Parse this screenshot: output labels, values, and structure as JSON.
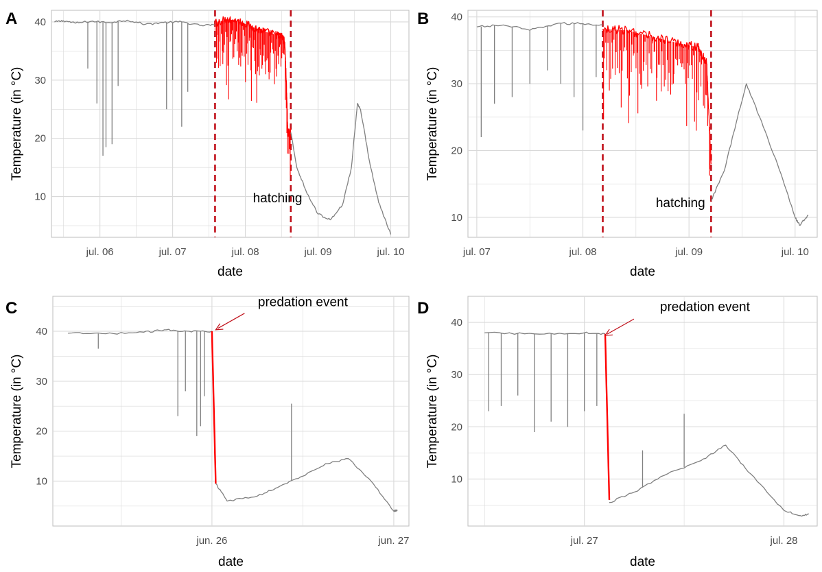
{
  "colors": {
    "series": "#808080",
    "highlight": "#ff0000",
    "event_line": "#c0101a",
    "grid": "#d9d9d9",
    "panel_border": "#bdbdbd"
  },
  "chart_data": [
    {
      "panel": "A",
      "type": "line",
      "xlabel": "date",
      "ylabel": "Temperature (in °C)",
      "x_axis_type": "date",
      "xlim": [
        "2021-07-05 08:00",
        "2021-07-10 06:00"
      ],
      "ylim": [
        3,
        42
      ],
      "x_ticks": [
        {
          "date": "2021-07-06",
          "label": "jul. 06"
        },
        {
          "date": "2021-07-07",
          "label": "jul. 07"
        },
        {
          "date": "2021-07-08",
          "label": "jul. 08"
        },
        {
          "date": "2021-07-09",
          "label": "jul. 09"
        },
        {
          "date": "2021-07-10",
          "label": "jul. 10"
        }
      ],
      "y_ticks": [
        10,
        20,
        30,
        40
      ],
      "grid": true,
      "vlines": [
        {
          "date": "2021-07-07 14:00",
          "style": "dashed"
        },
        {
          "date": "2021-07-08 15:00",
          "style": "dashed"
        }
      ],
      "annotation": {
        "text": "hatching",
        "date": "2021-07-08 02:30",
        "y": 9
      },
      "series": [
        {
          "role": "baseline",
          "color": "series",
          "points": [
            [
              "2021-07-05 09:00",
              40.0
            ],
            [
              "2021-07-05 12:00",
              40.2
            ],
            [
              "2021-07-05 16:00",
              39.8
            ],
            [
              "2021-07-05 21:00",
              40.1
            ],
            [
              "2021-07-06 03:00",
              39.9
            ],
            [
              "2021-07-06 09:00",
              40.3
            ],
            [
              "2021-07-06 15:00",
              39.6
            ],
            [
              "2021-07-06 21:00",
              39.9
            ],
            [
              "2021-07-07 03:00",
              40.0
            ],
            [
              "2021-07-07 09:00",
              39.4
            ],
            [
              "2021-07-07 14:00",
              39.5
            ]
          ]
        },
        {
          "role": "hatching",
          "color": "highlight",
          "points": [
            [
              "2021-07-07 14:00",
              39.8
            ],
            [
              "2021-07-07 18:00",
              40.5
            ],
            [
              "2021-07-07 22:00",
              40.1
            ],
            [
              "2021-07-08 02:00",
              39.2
            ],
            [
              "2021-07-08 06:00",
              38.4
            ],
            [
              "2021-07-08 10:00",
              37.8
            ],
            [
              "2021-07-08 12:00",
              37.5
            ],
            [
              "2021-07-08 13:00",
              36.5
            ],
            [
              "2021-07-08 13:30",
              30.0
            ],
            [
              "2021-07-08 14:00",
              21.0
            ],
            [
              "2021-07-08 15:00",
              21.0
            ]
          ]
        },
        {
          "role": "after",
          "color": "series",
          "points": [
            [
              "2021-07-08 15:00",
              21.0
            ],
            [
              "2021-07-08 17:00",
              15.0
            ],
            [
              "2021-07-08 20:00",
              11.0
            ],
            [
              "2021-07-09 00:00",
              7.0
            ],
            [
              "2021-07-09 04:00",
              6.0
            ],
            [
              "2021-07-09 08:00",
              8.5
            ],
            [
              "2021-07-09 11:00",
              15.0
            ],
            [
              "2021-07-09 13:00",
              26.0
            ],
            [
              "2021-07-09 14:00",
              25.0
            ],
            [
              "2021-07-09 17:00",
              16.0
            ],
            [
              "2021-07-09 20:00",
              9.0
            ],
            [
              "2021-07-10 00:00",
              3.5
            ]
          ]
        }
      ],
      "dips": [
        {
          "date": "2021-07-05 20:00",
          "min": 32
        },
        {
          "date": "2021-07-05 23:00",
          "min": 26
        },
        {
          "date": "2021-07-06 01:00",
          "min": 17
        },
        {
          "date": "2021-07-06 02:00",
          "min": 18.5
        },
        {
          "date": "2021-07-06 04:00",
          "min": 19
        },
        {
          "date": "2021-07-06 06:00",
          "min": 29
        },
        {
          "date": "2021-07-06 22:00",
          "min": 25
        },
        {
          "date": "2021-07-07 00:00",
          "min": 30
        },
        {
          "date": "2021-07-07 03:00",
          "min": 22
        },
        {
          "date": "2021-07-07 05:00",
          "min": 28
        }
      ]
    },
    {
      "panel": "B",
      "type": "line",
      "xlabel": "date",
      "ylabel": "Temperature (in °C)",
      "x_axis_type": "date",
      "xlim": [
        "2021-07-06 22:00",
        "2021-07-10 05:00"
      ],
      "ylim": [
        7,
        41
      ],
      "x_ticks": [
        {
          "date": "2021-07-07",
          "label": "jul. 07"
        },
        {
          "date": "2021-07-08",
          "label": "jul. 08"
        },
        {
          "date": "2021-07-09",
          "label": "jul. 09"
        },
        {
          "date": "2021-07-10",
          "label": "jul. 10"
        }
      ],
      "y_ticks": [
        10,
        20,
        30,
        40
      ],
      "grid": true,
      "vlines": [
        {
          "date": "2021-07-08 04:30",
          "style": "dashed"
        },
        {
          "date": "2021-07-09 05:00",
          "style": "dashed"
        }
      ],
      "annotation": {
        "text": "hatching",
        "date": "2021-07-08 16:30",
        "y": 11.5
      },
      "series": [
        {
          "role": "baseline",
          "color": "series",
          "points": [
            [
              "2021-07-07 00:00",
              38.5
            ],
            [
              "2021-07-07 06:00",
              38.8
            ],
            [
              "2021-07-07 12:00",
              38.0
            ],
            [
              "2021-07-07 18:00",
              39.0
            ],
            [
              "2021-07-08 00:00",
              39.0
            ],
            [
              "2021-07-08 04:30",
              38.8
            ]
          ]
        },
        {
          "role": "hatching",
          "color": "highlight",
          "points": [
            [
              "2021-07-08 04:30",
              38.2
            ],
            [
              "2021-07-08 10:00",
              38.0
            ],
            [
              "2021-07-08 16:00",
              37.0
            ],
            [
              "2021-07-08 22:00",
              36.0
            ],
            [
              "2021-07-09 02:00",
              35.5
            ],
            [
              "2021-07-09 04:00",
              33.0
            ],
            [
              "2021-07-09 05:00",
              18.0
            ]
          ]
        },
        {
          "role": "after",
          "color": "series",
          "points": [
            [
              "2021-07-09 05:00",
              12.5
            ],
            [
              "2021-07-09 08:00",
              17.0
            ],
            [
              "2021-07-09 11:00",
              25.0
            ],
            [
              "2021-07-09 13:00",
              30.0
            ],
            [
              "2021-07-09 16:00",
              25.0
            ],
            [
              "2021-07-09 20:00",
              18.0
            ],
            [
              "2021-07-10 00:00",
              10.0
            ],
            [
              "2021-07-10 01:00",
              8.8
            ],
            [
              "2021-07-10 03:00",
              10.3
            ]
          ]
        }
      ],
      "dips": [
        {
          "date": "2021-07-07 01:00",
          "min": 22
        },
        {
          "date": "2021-07-07 04:00",
          "min": 27
        },
        {
          "date": "2021-07-07 08:00",
          "min": 28
        },
        {
          "date": "2021-07-07 12:00",
          "min": 30
        },
        {
          "date": "2021-07-07 16:00",
          "min": 32
        },
        {
          "date": "2021-07-07 19:00",
          "min": 30
        },
        {
          "date": "2021-07-07 22:00",
          "min": 28
        },
        {
          "date": "2021-07-08 00:00",
          "min": 23
        },
        {
          "date": "2021-07-08 03:00",
          "min": 31
        }
      ]
    },
    {
      "panel": "C",
      "type": "line",
      "xlabel": "date",
      "ylabel": "Temperature (in °C)",
      "x_axis_type": "date",
      "xlim": [
        "2021-06-25 03:00",
        "2021-06-27 02:00"
      ],
      "ylim": [
        1,
        47
      ],
      "x_ticks": [
        {
          "date": "2021-06-26",
          "label": "jun. 26"
        },
        {
          "date": "2021-06-27",
          "label": "jun. 27"
        }
      ],
      "y_ticks": [
        10,
        20,
        30,
        40
      ],
      "grid": true,
      "annotation": {
        "text": "predation event",
        "date": "2021-06-26 12:00",
        "y": 45
      },
      "arrow": {
        "to_date": "2021-06-26 00:30",
        "to_y": 40.3
      },
      "series": [
        {
          "role": "before",
          "color": "series",
          "points": [
            [
              "2021-06-25 05:00",
              39.6
            ],
            [
              "2021-06-25 10:00",
              39.5
            ],
            [
              "2021-06-25 15:00",
              39.8
            ],
            [
              "2021-06-25 18:00",
              40.3
            ],
            [
              "2021-06-25 21:00",
              40.0
            ],
            [
              "2021-06-26 00:00",
              40.0
            ]
          ]
        },
        {
          "role": "event",
          "color": "highlight",
          "points": [
            [
              "2021-06-26 00:00",
              40.0
            ],
            [
              "2021-06-26 00:30",
              9.5
            ]
          ]
        },
        {
          "role": "after",
          "color": "series",
          "points": [
            [
              "2021-06-26 00:30",
              9.5
            ],
            [
              "2021-06-26 02:00",
              6.0
            ],
            [
              "2021-06-26 06:00",
              7.0
            ],
            [
              "2021-06-26 09:00",
              9.0
            ],
            [
              "2021-06-26 12:00",
              11.0
            ],
            [
              "2021-06-26 15:00",
              13.5
            ],
            [
              "2021-06-26 18:00",
              14.5
            ],
            [
              "2021-06-26 21:00",
              10.0
            ],
            [
              "2021-06-27 00:00",
              4.0
            ],
            [
              "2021-06-27 00:30",
              4.2
            ]
          ]
        }
      ],
      "dips": [
        {
          "date": "2021-06-25 09:00",
          "min": 36.5
        },
        {
          "date": "2021-06-25 19:30",
          "min": 23
        },
        {
          "date": "2021-06-25 20:30",
          "min": 28
        },
        {
          "date": "2021-06-25 22:00",
          "min": 19
        },
        {
          "date": "2021-06-25 22:30",
          "min": 21
        },
        {
          "date": "2021-06-25 23:00",
          "min": 27
        }
      ],
      "spikes": [
        {
          "date": "2021-06-26 10:30",
          "max": 25.5
        }
      ]
    },
    {
      "panel": "D",
      "type": "line",
      "xlabel": "date",
      "ylabel": "Temperature (in °C)",
      "x_axis_type": "date",
      "xlim": [
        "2021-07-26 10:00",
        "2021-07-28 04:00"
      ],
      "ylim": [
        1,
        45
      ],
      "x_ticks": [
        {
          "date": "2021-07-27",
          "label": "jul. 27"
        },
        {
          "date": "2021-07-28",
          "label": "jul. 28"
        }
      ],
      "y_ticks": [
        10,
        20,
        30,
        40
      ],
      "grid": true,
      "annotation": {
        "text": "predation event",
        "date": "2021-07-27 14:30",
        "y": 42.2
      },
      "arrow": {
        "to_date": "2021-07-27 02:30",
        "to_y": 37.5
      },
      "series": [
        {
          "role": "before",
          "color": "series",
          "points": [
            [
              "2021-07-26 12:00",
              38.0
            ],
            [
              "2021-07-26 18:00",
              37.8
            ],
            [
              "2021-07-27 00:00",
              38.0
            ],
            [
              "2021-07-27 02:30",
              37.8
            ]
          ]
        },
        {
          "role": "event",
          "color": "highlight",
          "points": [
            [
              "2021-07-27 02:30",
              37.8
            ],
            [
              "2021-07-27 03:00",
              6.0
            ]
          ]
        },
        {
          "role": "after",
          "color": "series",
          "points": [
            [
              "2021-07-27 03:00",
              5.5
            ],
            [
              "2021-07-27 06:00",
              7.5
            ],
            [
              "2021-07-27 10:00",
              11.0
            ],
            [
              "2021-07-27 14:00",
              13.5
            ],
            [
              "2021-07-27 17:00",
              16.5
            ],
            [
              "2021-07-27 20:00",
              11.0
            ],
            [
              "2021-07-28 00:00",
              4.0
            ],
            [
              "2021-07-28 02:00",
              3.0
            ],
            [
              "2021-07-28 03:00",
              3.3
            ]
          ]
        }
      ],
      "dips": [
        {
          "date": "2021-07-26 12:30",
          "min": 23
        },
        {
          "date": "2021-07-26 14:00",
          "min": 24
        },
        {
          "date": "2021-07-26 16:00",
          "min": 26
        },
        {
          "date": "2021-07-26 18:00",
          "min": 19
        },
        {
          "date": "2021-07-26 20:00",
          "min": 21
        },
        {
          "date": "2021-07-26 22:00",
          "min": 20
        },
        {
          "date": "2021-07-27 00:00",
          "min": 23
        },
        {
          "date": "2021-07-27 01:30",
          "min": 24
        }
      ],
      "spikes": [
        {
          "date": "2021-07-27 07:00",
          "max": 15.5
        },
        {
          "date": "2021-07-27 12:00",
          "max": 22.5
        }
      ]
    }
  ]
}
